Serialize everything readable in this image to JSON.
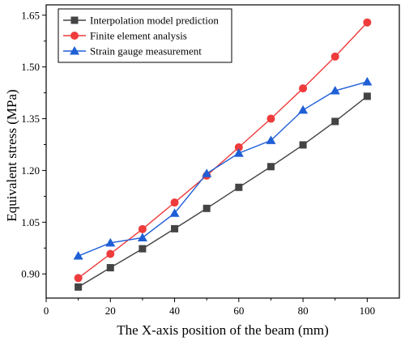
{
  "chart_data": {
    "type": "line",
    "xlabel": "The X-axis position of the beam (mm)",
    "ylabel": "Equivalent stress (MPa)",
    "xlim": [
      0,
      110
    ],
    "ylim": [
      0.83,
      1.68
    ],
    "xticks": [
      0,
      20,
      40,
      60,
      80,
      100
    ],
    "yticks": [
      0.9,
      1.05,
      1.2,
      1.35,
      1.5,
      1.65
    ],
    "xtick_labels": [
      "0",
      "20",
      "40",
      "60",
      "80",
      "100"
    ],
    "ytick_labels": [
      "0.90",
      "1.05",
      "1.20",
      "1.35",
      "1.50",
      "1.65"
    ],
    "legend_position": "top-left",
    "x": [
      10,
      20,
      30,
      40,
      50,
      60,
      70,
      80,
      90,
      100
    ],
    "series": [
      {
        "name": "Interpolation model prediction",
        "color": "#444444",
        "marker": "square",
        "values": [
          0.862,
          0.918,
          0.973,
          1.031,
          1.09,
          1.151,
          1.211,
          1.274,
          1.342,
          1.415
        ]
      },
      {
        "name": "Finite element analysis",
        "color": "#ee3b3b",
        "marker": "circle",
        "values": [
          0.888,
          0.958,
          1.03,
          1.107,
          1.185,
          1.267,
          1.35,
          1.438,
          1.53,
          1.629
        ]
      },
      {
        "name": "Strain gauge measurement",
        "color": "#1f5fd6",
        "marker": "triangle",
        "values": [
          0.952,
          0.99,
          1.005,
          1.076,
          1.191,
          1.25,
          1.287,
          1.375,
          1.431,
          1.457
        ]
      }
    ]
  }
}
